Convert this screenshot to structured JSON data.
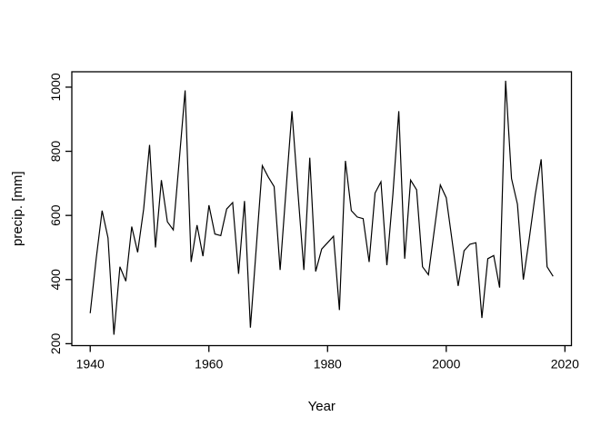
{
  "figure": {
    "background": "#ffffff",
    "line_color": "#000000",
    "axis_color": "#000000",
    "text_color": "#000000"
  },
  "chart_data": {
    "type": "line",
    "title": "",
    "xlabel": "Year",
    "ylabel": "precip. [mm]",
    "legend": "none",
    "grid": false,
    "xlim": [
      1936.9,
      2021.1
    ],
    "ylim": [
      194,
      1048
    ],
    "xticks": [
      1940,
      1960,
      1980,
      2000,
      2020
    ],
    "yticks": [
      200,
      400,
      600,
      800,
      1000
    ],
    "x": [
      1940,
      1941,
      1942,
      1943,
      1944,
      1945,
      1946,
      1947,
      1948,
      1949,
      1950,
      1951,
      1952,
      1953,
      1954,
      1955,
      1956,
      1957,
      1958,
      1959,
      1960,
      1961,
      1962,
      1963,
      1964,
      1965,
      1966,
      1967,
      1968,
      1969,
      1970,
      1971,
      1972,
      1973,
      1974,
      1975,
      1976,
      1977,
      1978,
      1979,
      1980,
      1981,
      1982,
      1983,
      1984,
      1985,
      1986,
      1987,
      1988,
      1989,
      1990,
      1991,
      1992,
      1993,
      1994,
      1995,
      1996,
      1997,
      1998,
      1999,
      2000,
      2001,
      2002,
      2003,
      2004,
      2005,
      2006,
      2007,
      2008,
      2009,
      2010,
      2011,
      2012,
      2013,
      2014,
      2015,
      2016,
      2017,
      2018
    ],
    "series": [
      {
        "name": "precip",
        "values": [
          295,
          465,
          615,
          530,
          228,
          440,
          395,
          565,
          485,
          620,
          820,
          500,
          710,
          580,
          555,
          770,
          990,
          455,
          570,
          473,
          632,
          542,
          537,
          620,
          640,
          418,
          645,
          250,
          505,
          755,
          720,
          690,
          430,
          680,
          925,
          675,
          430,
          780,
          425,
          495,
          515,
          535,
          305,
          770,
          615,
          595,
          590,
          455,
          670,
          705,
          445,
          665,
          925,
          465,
          710,
          680,
          440,
          415,
          555,
          695,
          655,
          520,
          380,
          490,
          510,
          515,
          280,
          465,
          475,
          375,
          1020,
          715,
          635,
          400,
          530,
          665,
          775,
          440,
          410
        ]
      }
    ]
  }
}
